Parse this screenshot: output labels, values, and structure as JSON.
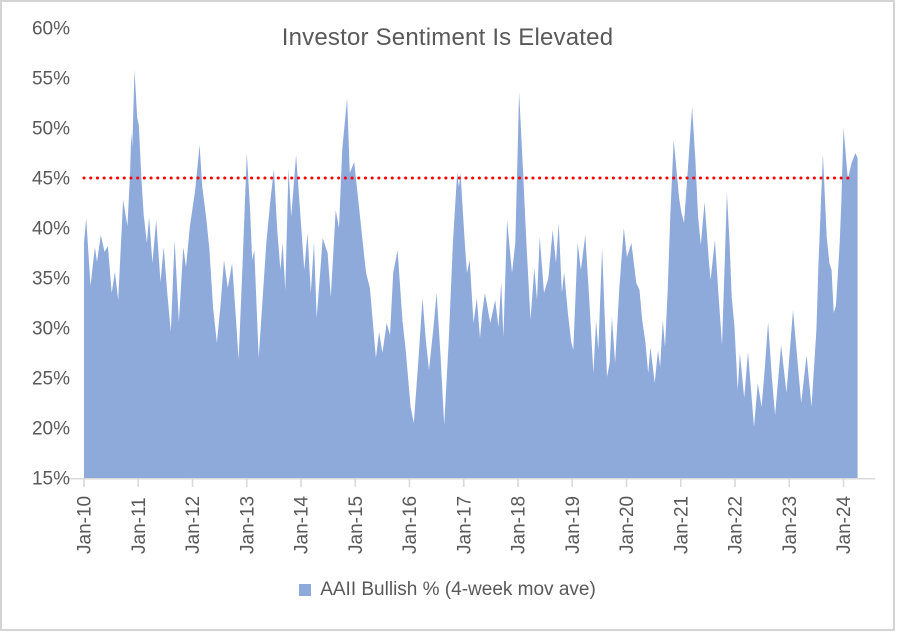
{
  "title": "Investor Sentiment Is Elevated",
  "legend": {
    "label": "AAII Bullish % (4-week mov ave)",
    "swatch_color": "#8EAADB"
  },
  "colors": {
    "area_fill": "#8EAADB",
    "threshold_line": "#FF0000",
    "axis_line": "#D9D9D9",
    "text": "#595959",
    "frame_border": "#D4D4D4"
  },
  "chart_data": {
    "type": "area",
    "title": "Investor Sentiment Is Elevated",
    "series_name": "AAII Bullish % (4-week mov ave)",
    "ylim": [
      15,
      60
    ],
    "xlim_years": [
      2010.0,
      2024.58
    ],
    "grid": "off",
    "legend_position": "bottom",
    "threshold": {
      "value": 45,
      "style": "dotted",
      "color": "#FF0000"
    },
    "y_ticks": [
      [
        15,
        "15%"
      ],
      [
        20,
        "20%"
      ],
      [
        25,
        "25%"
      ],
      [
        30,
        "30%"
      ],
      [
        35,
        "35%"
      ],
      [
        40,
        "40%"
      ],
      [
        45,
        "45%"
      ],
      [
        50,
        "50%"
      ],
      [
        55,
        "55%"
      ],
      [
        60,
        "60%"
      ]
    ],
    "x_ticks": [
      [
        2010,
        "Jan-10"
      ],
      [
        2011,
        "Jan-11"
      ],
      [
        2012,
        "Jan-12"
      ],
      [
        2013,
        "Jan-13"
      ],
      [
        2014,
        "Jan-14"
      ],
      [
        2015,
        "Jan-15"
      ],
      [
        2016,
        "Jan-16"
      ],
      [
        2017,
        "Jan-17"
      ],
      [
        2018,
        "Jan-18"
      ],
      [
        2019,
        "Jan-19"
      ],
      [
        2020,
        "Jan-20"
      ],
      [
        2021,
        "Jan-21"
      ],
      [
        2022,
        "Jan-22"
      ],
      [
        2023,
        "Jan-23"
      ],
      [
        2024,
        "Jan-24"
      ]
    ],
    "points": [
      [
        2010.0,
        38.5
      ],
      [
        2010.04,
        41.0
      ],
      [
        2010.12,
        34.2
      ],
      [
        2010.2,
        38.1
      ],
      [
        2010.24,
        36.6
      ],
      [
        2010.31,
        39.3
      ],
      [
        2010.38,
        37.6
      ],
      [
        2010.44,
        38.2
      ],
      [
        2010.51,
        33.5
      ],
      [
        2010.57,
        35.6
      ],
      [
        2010.63,
        32.8
      ],
      [
        2010.72,
        42.8
      ],
      [
        2010.8,
        40.2
      ],
      [
        2010.85,
        45.5
      ],
      [
        2010.87,
        49.5
      ],
      [
        2010.89,
        48.1
      ],
      [
        2010.93,
        55.8
      ],
      [
        2010.98,
        51.0
      ],
      [
        2011.01,
        50.3
      ],
      [
        2011.06,
        44.8
      ],
      [
        2011.1,
        41.3
      ],
      [
        2011.16,
        38.5
      ],
      [
        2011.2,
        41.1
      ],
      [
        2011.26,
        36.5
      ],
      [
        2011.33,
        40.8
      ],
      [
        2011.41,
        34.6
      ],
      [
        2011.47,
        38.1
      ],
      [
        2011.53,
        33.8
      ],
      [
        2011.6,
        29.6
      ],
      [
        2011.67,
        38.8
      ],
      [
        2011.75,
        30.6
      ],
      [
        2011.83,
        38.1
      ],
      [
        2011.88,
        36.1
      ],
      [
        2011.95,
        40.1
      ],
      [
        2012.05,
        43.8
      ],
      [
        2012.13,
        48.3
      ],
      [
        2012.18,
        44.1
      ],
      [
        2012.25,
        41.1
      ],
      [
        2012.31,
        38.0
      ],
      [
        2012.38,
        32.0
      ],
      [
        2012.45,
        28.5
      ],
      [
        2012.52,
        32.5
      ],
      [
        2012.58,
        36.8
      ],
      [
        2012.65,
        34.0
      ],
      [
        2012.73,
        36.5
      ],
      [
        2012.8,
        31.0
      ],
      [
        2012.85,
        26.8
      ],
      [
        2012.92,
        36.0
      ],
      [
        2013.0,
        47.5
      ],
      [
        2013.06,
        42.0
      ],
      [
        2013.1,
        36.8
      ],
      [
        2013.14,
        37.8
      ],
      [
        2013.22,
        27.0
      ],
      [
        2013.3,
        33.5
      ],
      [
        2013.36,
        38.5
      ],
      [
        2013.43,
        42.5
      ],
      [
        2013.5,
        45.9
      ],
      [
        2013.56,
        40.0
      ],
      [
        2013.62,
        35.8
      ],
      [
        2013.66,
        38.5
      ],
      [
        2013.71,
        33.8
      ],
      [
        2013.77,
        46.0
      ],
      [
        2013.82,
        41.1
      ],
      [
        2013.91,
        47.3
      ],
      [
        2013.99,
        41.1
      ],
      [
        2014.06,
        35.8
      ],
      [
        2014.12,
        39.5
      ],
      [
        2014.18,
        33.5
      ],
      [
        2014.24,
        38.5
      ],
      [
        2014.29,
        31.0
      ],
      [
        2014.36,
        36.0
      ],
      [
        2014.4,
        39.0
      ],
      [
        2014.49,
        37.5
      ],
      [
        2014.55,
        33.1
      ],
      [
        2014.64,
        41.8
      ],
      [
        2014.7,
        40.0
      ],
      [
        2014.76,
        47.8
      ],
      [
        2014.85,
        53.0
      ],
      [
        2014.9,
        45.5
      ],
      [
        2014.98,
        46.6
      ],
      [
        2015.07,
        42.1
      ],
      [
        2015.14,
        38.5
      ],
      [
        2015.2,
        35.5
      ],
      [
        2015.27,
        34.0
      ],
      [
        2015.38,
        27.0
      ],
      [
        2015.44,
        29.6
      ],
      [
        2015.5,
        27.5
      ],
      [
        2015.58,
        30.5
      ],
      [
        2015.64,
        29.3
      ],
      [
        2015.7,
        35.5
      ],
      [
        2015.78,
        37.8
      ],
      [
        2015.87,
        30.8
      ],
      [
        2015.93,
        27.8
      ],
      [
        2016.02,
        22.1
      ],
      [
        2016.08,
        20.5
      ],
      [
        2016.16,
        26.5
      ],
      [
        2016.24,
        33.0
      ],
      [
        2016.3,
        28.8
      ],
      [
        2016.36,
        25.8
      ],
      [
        2016.44,
        30.0
      ],
      [
        2016.5,
        33.5
      ],
      [
        2016.57,
        27.5
      ],
      [
        2016.64,
        20.3
      ],
      [
        2016.72,
        28.5
      ],
      [
        2016.8,
        38.5
      ],
      [
        2016.88,
        45.6
      ],
      [
        2016.91,
        44.1
      ],
      [
        2016.94,
        45.5
      ],
      [
        2017.02,
        38.5
      ],
      [
        2017.06,
        35.5
      ],
      [
        2017.11,
        36.8
      ],
      [
        2017.18,
        30.5
      ],
      [
        2017.24,
        33.0
      ],
      [
        2017.3,
        29.0
      ],
      [
        2017.34,
        31.5
      ],
      [
        2017.39,
        33.5
      ],
      [
        2017.49,
        30.5
      ],
      [
        2017.58,
        32.8
      ],
      [
        2017.64,
        30.1
      ],
      [
        2017.69,
        34.6
      ],
      [
        2017.73,
        29.1
      ],
      [
        2017.8,
        40.8
      ],
      [
        2017.89,
        35.5
      ],
      [
        2017.95,
        38.5
      ],
      [
        2018.02,
        53.6
      ],
      [
        2018.1,
        45.0
      ],
      [
        2018.15,
        39.1
      ],
      [
        2018.23,
        30.8
      ],
      [
        2018.3,
        36.0
      ],
      [
        2018.35,
        32.8
      ],
      [
        2018.4,
        39.1
      ],
      [
        2018.48,
        33.5
      ],
      [
        2018.56,
        35.0
      ],
      [
        2018.64,
        39.8
      ],
      [
        2018.7,
        36.5
      ],
      [
        2018.75,
        40.5
      ],
      [
        2018.81,
        33.5
      ],
      [
        2018.85,
        35.6
      ],
      [
        2018.92,
        31.5
      ],
      [
        2018.98,
        28.6
      ],
      [
        2019.02,
        27.8
      ],
      [
        2019.1,
        38.5
      ],
      [
        2019.16,
        35.8
      ],
      [
        2019.24,
        39.3
      ],
      [
        2019.31,
        33.1
      ],
      [
        2019.39,
        25.5
      ],
      [
        2019.44,
        30.8
      ],
      [
        2019.48,
        27.8
      ],
      [
        2019.55,
        38.0
      ],
      [
        2019.64,
        25.1
      ],
      [
        2019.69,
        26.5
      ],
      [
        2019.73,
        31.1
      ],
      [
        2019.79,
        26.5
      ],
      [
        2019.87,
        34.1
      ],
      [
        2019.95,
        40.0
      ],
      [
        2020.01,
        37.1
      ],
      [
        2020.09,
        38.5
      ],
      [
        2020.18,
        34.5
      ],
      [
        2020.24,
        33.8
      ],
      [
        2020.29,
        30.8
      ],
      [
        2020.35,
        28.5
      ],
      [
        2020.4,
        25.5
      ],
      [
        2020.44,
        28.1
      ],
      [
        2020.52,
        24.5
      ],
      [
        2020.58,
        27.8
      ],
      [
        2020.62,
        26.1
      ],
      [
        2020.67,
        30.8
      ],
      [
        2020.71,
        28.1
      ],
      [
        2020.76,
        33.8
      ],
      [
        2020.81,
        41.5
      ],
      [
        2020.87,
        48.8
      ],
      [
        2020.97,
        43.0
      ],
      [
        2021.01,
        41.6
      ],
      [
        2021.06,
        40.5
      ],
      [
        2021.13,
        45.8
      ],
      [
        2021.21,
        52.1
      ],
      [
        2021.27,
        46.8
      ],
      [
        2021.32,
        41.1
      ],
      [
        2021.37,
        38.3
      ],
      [
        2021.44,
        42.6
      ],
      [
        2021.52,
        36.5
      ],
      [
        2021.55,
        34.8
      ],
      [
        2021.63,
        38.8
      ],
      [
        2021.69,
        33.8
      ],
      [
        2021.76,
        28.3
      ],
      [
        2021.81,
        36.5
      ],
      [
        2021.85,
        43.5
      ],
      [
        2021.9,
        38.5
      ],
      [
        2021.94,
        33.1
      ],
      [
        2021.99,
        30.1
      ],
      [
        2022.05,
        23.8
      ],
      [
        2022.09,
        27.5
      ],
      [
        2022.17,
        23.0
      ],
      [
        2022.24,
        27.6
      ],
      [
        2022.35,
        20.1
      ],
      [
        2022.42,
        24.5
      ],
      [
        2022.49,
        22.1
      ],
      [
        2022.55,
        26.0
      ],
      [
        2022.61,
        30.6
      ],
      [
        2022.68,
        25.0
      ],
      [
        2022.74,
        21.3
      ],
      [
        2022.85,
        28.3
      ],
      [
        2022.95,
        23.5
      ],
      [
        2023.07,
        31.8
      ],
      [
        2023.14,
        27.5
      ],
      [
        2023.22,
        22.5
      ],
      [
        2023.32,
        27.3
      ],
      [
        2023.41,
        22.1
      ],
      [
        2023.5,
        29.8
      ],
      [
        2023.54,
        36.5
      ],
      [
        2023.62,
        47.4
      ],
      [
        2023.69,
        39.1
      ],
      [
        2023.74,
        36.5
      ],
      [
        2023.78,
        35.8
      ],
      [
        2023.82,
        31.5
      ],
      [
        2023.86,
        32.2
      ],
      [
        2023.93,
        38.5
      ],
      [
        2023.96,
        42.5
      ],
      [
        2024.0,
        50.0
      ],
      [
        2024.08,
        44.9
      ],
      [
        2024.15,
        46.5
      ],
      [
        2024.22,
        47.5
      ],
      [
        2024.26,
        47.0
      ]
    ]
  }
}
